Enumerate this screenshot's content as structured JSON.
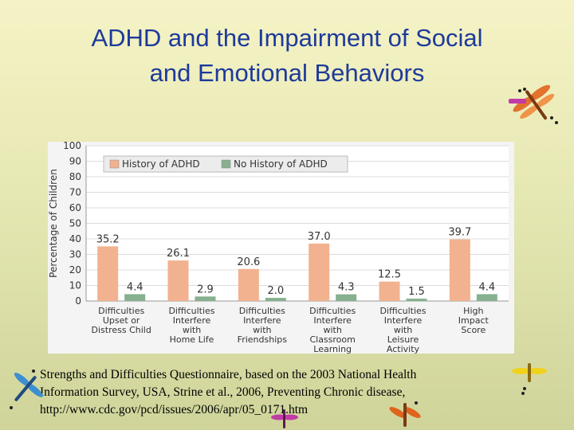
{
  "slide": {
    "title_line1": "ADHD and the Impairment of Social",
    "title_line2": "and Emotional Behaviors",
    "caption_line1": "Strengths and Difficulties Questionnaire, based on the 2003 National Health",
    "caption_line2": "Information Survey, USA, Strine et al., 2006, Preventing Chronic disease,",
    "caption_line3": "http://www.cdc.gov/pcd/issues/2006/apr/05_0171.htm"
  },
  "chart_data": {
    "type": "bar",
    "title": "",
    "xlabel": "",
    "ylabel": "Percentage of Children",
    "ylim": [
      0,
      100
    ],
    "yticks": [
      0,
      10,
      20,
      30,
      40,
      50,
      60,
      70,
      80,
      90,
      100
    ],
    "grid": true,
    "legend_position": "top-left",
    "categories": [
      [
        "Difficulties",
        "Upset or",
        "Distress Child"
      ],
      [
        "Difficulties",
        "Interfere",
        "with",
        "Home Life"
      ],
      [
        "Difficulties",
        "Interfere",
        "with",
        "Friendships"
      ],
      [
        "Difficulties",
        "Interfere",
        "with",
        "Classroom",
        "Learning"
      ],
      [
        "Difficulties",
        "Interfere",
        "with",
        "Leisure",
        "Activity"
      ],
      [
        "High",
        "Impact",
        "Score"
      ]
    ],
    "series": [
      {
        "name": "History of ADHD",
        "color": "#f2b28f",
        "values": [
          35.2,
          26.1,
          20.6,
          37.0,
          12.5,
          39.7
        ],
        "labels": [
          "35.2",
          "26.1",
          "20.6",
          "37.0",
          "12.5",
          "39.7"
        ]
      },
      {
        "name": "No History of ADHD",
        "color": "#86b08e",
        "values": [
          4.4,
          2.9,
          2.0,
          4.3,
          1.5,
          4.4
        ],
        "labels": [
          "4.4",
          "2.9",
          "2.0",
          "4.3",
          "1.5",
          "4.4"
        ]
      }
    ]
  },
  "decor": {
    "dragonfly_icon": "dragonfly-icon",
    "colors": [
      "#e0641e",
      "#c23aa6",
      "#3c8fd0",
      "#f0d21e"
    ]
  }
}
